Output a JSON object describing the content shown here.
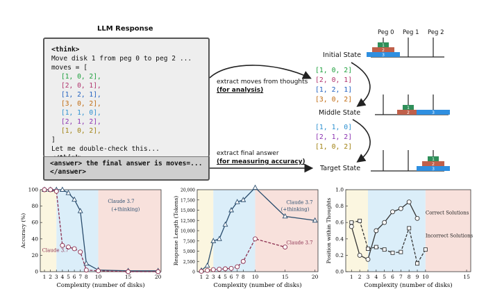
{
  "llm": {
    "title": "LLM Response",
    "think_open": "<think>",
    "line1": "Move disk 1 from peg 0 to peg 2 ...",
    "moves_head": "moves = [",
    "moves": [
      {
        "text": "[1, 0, 2],",
        "color": "#1a9e3a"
      },
      {
        "text": "[2, 0, 1],",
        "color": "#b0306b"
      },
      {
        "text": "[1, 2, 1],",
        "color": "#2060c0"
      },
      {
        "text": "[3, 0, 2],",
        "color": "#c06a10"
      },
      {
        "text": "[1, 1, 0],",
        "color": "#2a8fd0"
      },
      {
        "text": "[2, 1, 2],",
        "color": "#8a30b0"
      },
      {
        "text": "[1, 0, 2],",
        "color": "#a08010"
      }
    ],
    "close_bracket": "]",
    "line_check": "Let me double-check this...",
    "think_close": "</think>",
    "answer_line1": "<answer> the final answer is moves=...",
    "answer_line2": "</answer>"
  },
  "arrows": {
    "extract_thoughts_1": "extract moves  from thoughts",
    "extract_thoughts_2": "(for analysis)",
    "extract_final_1": "extract final answer",
    "extract_final_2": "(for measuring accuracy)"
  },
  "extracted_first": [
    {
      "text": "[1, 0, 2]",
      "color": "#1a9e3a"
    },
    {
      "text": "[2, 0, 1]",
      "color": "#b0306b"
    },
    {
      "text": "[1, 2, 1]",
      "color": "#2060c0"
    },
    {
      "text": "[3, 0, 2]",
      "color": "#c06a10"
    }
  ],
  "extracted_second": [
    {
      "text": "[1, 1, 0]",
      "color": "#2a8fd0"
    },
    {
      "text": "[2, 1, 2]",
      "color": "#8a30b0"
    },
    {
      "text": "[1, 0, 2]",
      "color": "#a08010"
    }
  ],
  "states": {
    "initial": "Initial State",
    "middle": "Middle State",
    "target": "Target State",
    "pegs": [
      "Peg 0",
      "Peg 1",
      "Peg 2"
    ]
  },
  "colors": {
    "disk1": "#2f8f5a",
    "disk2": "#c0604a",
    "disk3": "#2f8fe0",
    "band_yellow": "#fbf6e0",
    "band_blue": "#dbeef9",
    "band_red": "#f8e1dc",
    "claude_think": "#2a4d6e",
    "claude_plain": "#8a2d4e"
  },
  "disk_labels": [
    "1",
    "2",
    "3"
  ],
  "chart_data": [
    {
      "type": "line",
      "xlabel": "Complexity (number of disks)",
      "ylabel": "Accuracy (%)",
      "xticks": [
        "1",
        "2",
        "3",
        "4",
        "5",
        "6",
        "7",
        "8",
        "10",
        "15",
        "20"
      ],
      "yticks": [
        "0",
        "20",
        "40",
        "60",
        "80",
        "100"
      ],
      "ylim": [
        0,
        100
      ],
      "series": [
        {
          "name": "Claude 3.7 (+thinking)",
          "x": [
            1,
            2,
            3,
            4,
            5,
            6,
            7,
            8,
            10,
            15,
            20
          ],
          "values": [
            100,
            100,
            100,
            100,
            96,
            88,
            74,
            10,
            2,
            1,
            1
          ]
        },
        {
          "name": "Claude 3.7",
          "x": [
            1,
            2,
            3,
            4,
            5,
            6,
            7,
            8,
            10,
            15,
            20
          ],
          "values": [
            100,
            100,
            98,
            32,
            30,
            28,
            24,
            2,
            1,
            0,
            0
          ]
        }
      ],
      "labels": [
        "Claude 3.7",
        "(+thinking)",
        "Claude 3.7"
      ]
    },
    {
      "type": "line",
      "xlabel": "Complexity (number of disks)",
      "ylabel": "Response Length (Tokens)",
      "xticks": [
        "1",
        "2",
        "3",
        "4",
        "5",
        "6",
        "7",
        "8",
        "10",
        "15",
        "20"
      ],
      "yticks": [
        "0",
        "2,500",
        "5,000",
        "7,500",
        "10,000",
        "12,500",
        "15,000",
        "17,500",
        "20,000"
      ],
      "ylim": [
        0,
        20000
      ],
      "series": [
        {
          "name": "Claude 3.7 (+thinking)",
          "x": [
            1,
            2,
            3,
            4,
            5,
            6,
            7,
            8,
            10,
            15,
            20
          ],
          "values": [
            300,
            1500,
            7500,
            8000,
            11500,
            15000,
            17000,
            17500,
            20500,
            13500,
            12500
          ]
        },
        {
          "name": "Claude 3.7",
          "x": [
            1,
            2,
            3,
            4,
            5,
            6,
            7,
            8,
            10,
            15,
            20
          ],
          "values": [
            100,
            300,
            500,
            600,
            700,
            800,
            1200,
            2500,
            8000,
            6000,
            null
          ]
        }
      ],
      "labels": [
        "Claude 3.7",
        "(+thinking)",
        "Claude 3.7"
      ]
    },
    {
      "type": "line",
      "xlabel": "Complexity (number of disks)",
      "ylabel": "Position within Thoughts",
      "xticks": [
        "1",
        "2",
        "3",
        "4",
        "5",
        "6",
        "7",
        "8",
        "9",
        "10",
        "15"
      ],
      "yticks": [
        "0.0",
        "0.2",
        "0.4",
        "0.6",
        "0.8",
        "1.0"
      ],
      "ylim": [
        0,
        1
      ],
      "series": [
        {
          "name": "Correct Solutions",
          "x": [
            1,
            2,
            3,
            4,
            5,
            6,
            7,
            8,
            9
          ],
          "values": [
            0.55,
            0.2,
            0.15,
            0.5,
            0.6,
            0.73,
            0.77,
            0.85,
            0.65
          ]
        },
        {
          "name": "Incorrect Solutions",
          "x": [
            1,
            2,
            3,
            4,
            5,
            6,
            7,
            8,
            9,
            10
          ],
          "values": [
            0.6,
            0.62,
            0.28,
            0.3,
            0.27,
            0.23,
            0.24,
            0.53,
            0.1,
            0.27
          ]
        }
      ],
      "labels": [
        "Correct Solutions",
        "Incorrect Solutions"
      ]
    }
  ]
}
